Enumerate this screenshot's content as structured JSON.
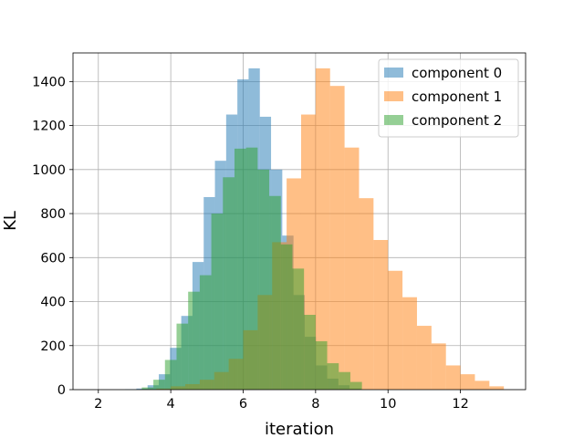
{
  "chart_data": {
    "type": "histogram",
    "xlabel": "iteration",
    "ylabel": "KL",
    "xlim": [
      1.3,
      13.8
    ],
    "ylim": [
      0,
      1530
    ],
    "xticks": [
      2,
      4,
      6,
      8,
      10,
      12
    ],
    "yticks": [
      0,
      200,
      400,
      600,
      800,
      1000,
      1200,
      1400
    ],
    "grid": true,
    "legend_position": "top-right",
    "series": [
      {
        "name": "component 0",
        "color": "#1f77b4",
        "opacity": 0.5,
        "bins": [
          2.74,
          3.05,
          3.36,
          3.67,
          3.98,
          4.29,
          4.6,
          4.91,
          5.22,
          5.53,
          5.84,
          6.15,
          6.46,
          6.77,
          7.08,
          7.39,
          7.7,
          8.01,
          8.32,
          8.63,
          8.94,
          9.25
        ],
        "counts": [
          2,
          5,
          20,
          70,
          190,
          335,
          580,
          875,
          1040,
          1250,
          1410,
          1460,
          1240,
          1000,
          700,
          430,
          240,
          110,
          50,
          20,
          5
        ]
      },
      {
        "name": "component 1",
        "color": "#ff7f0e",
        "opacity": 0.5,
        "bins": [
          3.2,
          3.6,
          4.0,
          4.4,
          4.8,
          5.2,
          5.6,
          6.0,
          6.4,
          6.8,
          7.2,
          7.6,
          8.0,
          8.4,
          8.8,
          9.2,
          9.6,
          10.0,
          10.4,
          10.8,
          11.2,
          11.6,
          12.0,
          12.4,
          12.8,
          13.2
        ],
        "counts": [
          1,
          5,
          15,
          25,
          45,
          80,
          140,
          270,
          430,
          670,
          960,
          1250,
          1460,
          1380,
          1100,
          870,
          680,
          540,
          420,
          290,
          210,
          110,
          70,
          40,
          15
        ]
      },
      {
        "name": "component 2",
        "color": "#2ca02c",
        "opacity": 0.5,
        "bins": [
          3.2,
          3.52,
          3.84,
          4.16,
          4.48,
          4.8,
          5.12,
          5.44,
          5.76,
          6.08,
          6.4,
          6.72,
          7.04,
          7.36,
          7.68,
          8.0,
          8.32,
          8.64,
          8.96,
          9.28
        ],
        "counts": [
          10,
          45,
          135,
          300,
          445,
          520,
          800,
          965,
          1095,
          1100,
          1000,
          880,
          660,
          550,
          340,
          220,
          120,
          80,
          35
        ]
      }
    ]
  }
}
